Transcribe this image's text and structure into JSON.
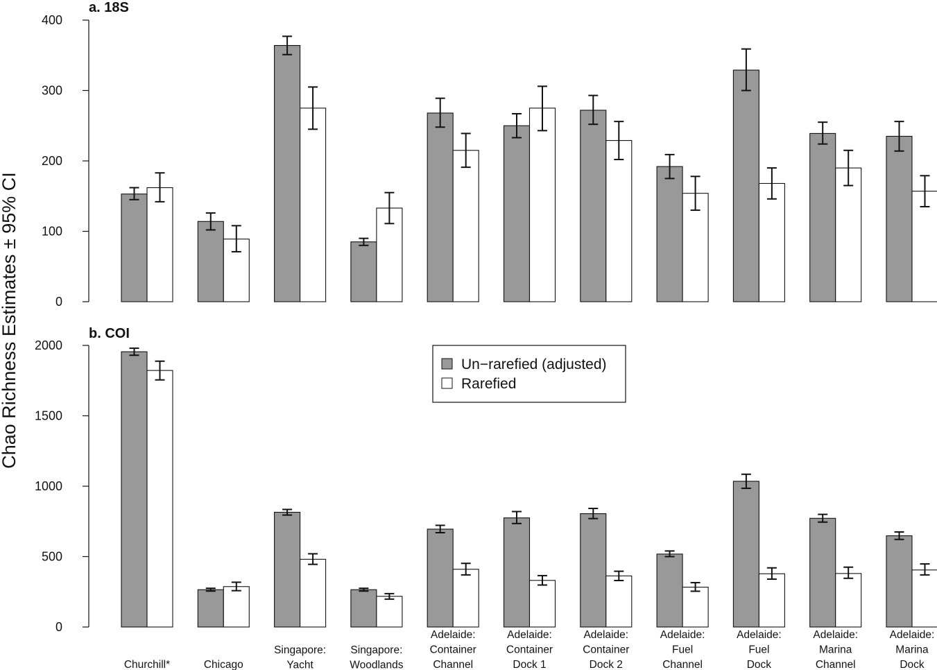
{
  "chart_data": {
    "type": "bar",
    "ylabel": "Chao Richness Estimates ± 95% CI",
    "legend": {
      "placement": "center-right of panel b",
      "entries": [
        {
          "name": "Un−rarefied (adjusted)",
          "color": "#999999"
        },
        {
          "name": "Rarefied",
          "color": "#ffffff"
        }
      ]
    },
    "categories": [
      [
        "Churchill*"
      ],
      [
        "Chicago"
      ],
      [
        "Singapore:",
        "Yacht"
      ],
      [
        "Singapore:",
        "Woodlands"
      ],
      [
        "Adelaide:",
        "Container",
        "Channel"
      ],
      [
        "Adelaide:",
        "Container",
        "Dock 1"
      ],
      [
        "Adelaide:",
        "Container",
        "Dock 2"
      ],
      [
        "Adelaide:",
        "Fuel",
        "Channel"
      ],
      [
        "Adelaide:",
        "Fuel",
        "Dock"
      ],
      [
        "Adelaide:",
        "Marina",
        "Channel"
      ],
      [
        "Adelaide:",
        "Marina",
        "Dock"
      ]
    ],
    "panels": [
      {
        "title": "a. 18S",
        "ylim": [
          0,
          400
        ],
        "yticks": [
          0,
          100,
          200,
          300,
          400
        ],
        "series": [
          {
            "name": "Un−rarefied (adjusted)",
            "values": [
              153,
              114,
              364,
              85,
              268,
              250,
              272,
              192,
              329,
              239,
              235
            ],
            "ci_low": [
              145,
              102,
              351,
              80,
              248,
              233,
              252,
              175,
              300,
              224,
              214
            ],
            "ci_high": [
              162,
              126,
              377,
              90,
              289,
              267,
              293,
              209,
              359,
              255,
              256
            ]
          },
          {
            "name": "Rarefied",
            "values": [
              162,
              89,
              275,
              133,
              215,
              275,
              229,
              154,
              168,
              190,
              157
            ],
            "ci_low": [
              142,
              71,
              245,
              111,
              191,
              243,
              202,
              130,
              146,
              165,
              135
            ],
            "ci_high": [
              183,
              108,
              305,
              155,
              239,
              306,
              256,
              178,
              190,
              215,
              179
            ]
          }
        ]
      },
      {
        "title": "b. COI",
        "ylim": [
          0,
          2000
        ],
        "yticks": [
          0,
          500,
          1000,
          1500,
          2000
        ],
        "series": [
          {
            "name": "Un−rarefied (adjusted)",
            "values": [
              1955,
              265,
              815,
              265,
              695,
              775,
              805,
              518,
              1035,
              772,
              648
            ],
            "ci_low": [
              1930,
              255,
              795,
              255,
              670,
              735,
              770,
              500,
              985,
              745,
              622
            ],
            "ci_high": [
              1980,
              275,
              835,
              275,
              722,
              820,
              842,
              540,
              1085,
              800,
              675
            ]
          },
          {
            "name": "Rarefied",
            "values": [
              1822,
              287,
              481,
              218,
              410,
              331,
              363,
              283,
              378,
              380,
              405
            ],
            "ci_low": [
              1755,
              258,
              445,
              198,
              370,
              298,
              330,
              254,
              340,
              346,
              370
            ],
            "ci_high": [
              1888,
              318,
              520,
              237,
              452,
              365,
              396,
              315,
              420,
              425,
              448
            ]
          }
        ]
      }
    ]
  }
}
